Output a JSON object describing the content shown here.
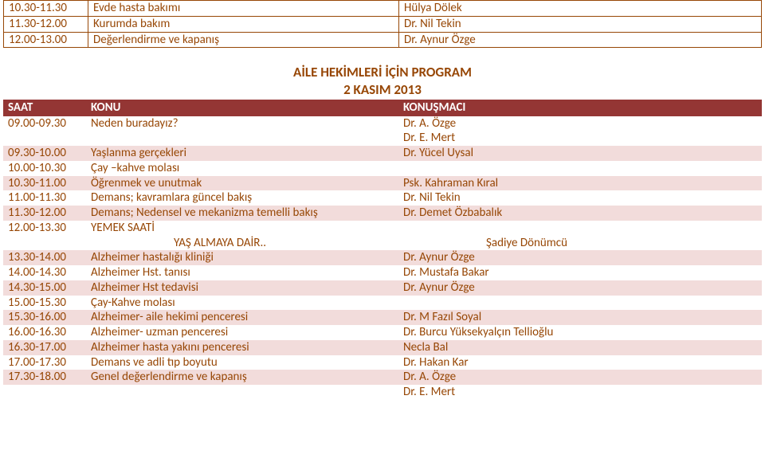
{
  "top_table": {
    "rows": [
      {
        "time": "10.30-11.30",
        "topic": "Evde hasta bakımı",
        "speaker": "Hülya Dölek"
      },
      {
        "time": "11.30-12.00",
        "topic": "Kurumda bakım",
        "speaker": "Dr. Nil Tekin"
      },
      {
        "time": "12.00-13.00",
        "topic": "Değerlendirme ve kapanış",
        "speaker": "Dr. Aynur Özge"
      }
    ]
  },
  "section": {
    "title": "AİLE HEKİMLERİ İÇİN PROGRAM",
    "subtitle": "2 KASIM 2013",
    "header": {
      "c1": "SAAT",
      "c2": "KONU",
      "c3": "KONUŞMACI"
    }
  },
  "rows": [
    {
      "hl": false,
      "c1": "09.00-09.30",
      "c2": "Neden buradayız?",
      "c3": "Dr. A. Özge"
    },
    {
      "hl": false,
      "c1": "",
      "c2": "",
      "c3": "Dr. E. Mert"
    },
    {
      "hl": true,
      "c1": "09.30-10.00",
      "c2": "Yaşlanma gerçekleri",
      "c3": "Dr. Yücel Uysal"
    },
    {
      "hl": false,
      "c1": "10.00-10.30",
      "c2": "Çay –kahve molası",
      "c3": ""
    },
    {
      "hl": true,
      "c1": "10.30-11.00",
      "c2": "Öğrenmek ve unutmak",
      "c3": "Psk. Kahraman Kıral"
    },
    {
      "hl": false,
      "c1": "11.00-11.30",
      "c2": "Demans; kavramlara güncel bakış",
      "c3": "Dr. Nil Tekin"
    },
    {
      "hl": true,
      "c1": "11.30-12.00",
      "c2": "Demans; Nedensel ve mekanizma temelli bakış",
      "c3": "Dr. Demet Özbabalık"
    },
    {
      "hl": false,
      "c1": "12.00-13.30",
      "c2": "YEMEK SAATİ",
      "c3": ""
    },
    {
      "hl": false,
      "c1": "",
      "c2": "YAŞ ALMAYA DAİR..",
      "c3": "Şadiye Dönümcü",
      "indent": true
    },
    {
      "hl": true,
      "c1": "13.30-14.00",
      "c2": "Alzheimer hastalığı kliniği",
      "c3": "Dr. Aynur Özge"
    },
    {
      "hl": false,
      "c1": "14.00-14.30",
      "c2": "Alzheimer Hst. tanısı",
      "c3": "Dr. Mustafa Bakar"
    },
    {
      "hl": true,
      "c1": "14.30-15.00",
      "c2": "Alzheimer Hst tedavisi",
      "c3": "Dr. Aynur Özge"
    },
    {
      "hl": false,
      "c1": "15.00-15.30",
      "c2": "Çay-Kahve molası",
      "c3": ""
    },
    {
      "hl": true,
      "c1": "15.30-16.00",
      "c2": "Alzheimer- aile hekimi penceresi",
      "c3": "Dr. M Fazıl Soyal"
    },
    {
      "hl": false,
      "c1": "16.00-16.30",
      "c2": "Alzheimer- uzman penceresi",
      "c3": "Dr. Burcu Yüksekyalçın Tellioğlu"
    },
    {
      "hl": true,
      "c1": "16.30-17.00",
      "c2": "Alzheimer hasta yakını penceresi",
      "c3": "Necla Bal"
    },
    {
      "hl": false,
      "c1": "17.00-17.30",
      "c2": "Demans ve adli tıp boyutu",
      "c3": "Dr. Hakan Kar"
    },
    {
      "hl": true,
      "c1": "17.30-18.00",
      "c2": "Genel değerlendirme ve kapanış",
      "c3": "Dr. A. Özge"
    },
    {
      "hl": false,
      "c1": "",
      "c2": "",
      "c3": "Dr. E. Mert"
    }
  ]
}
